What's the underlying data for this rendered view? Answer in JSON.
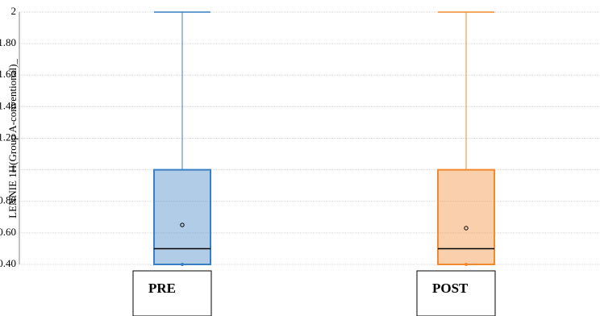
{
  "chart_data": {
    "type": "box",
    "y_label": "LENNIE 1H(Group A-conventional)_",
    "categories": [
      "PRE",
      "POST"
    ],
    "boxes": [
      {
        "min": 0.4,
        "q1": 0.4,
        "median": 0.5,
        "q3": 1,
        "max": 2,
        "mean": 0.65,
        "color": "#3a7fc1"
      },
      {
        "min": 0.4,
        "q1": 0.4,
        "median": 0.5,
        "q3": 1,
        "max": 2,
        "mean": 0.63,
        "color": "#f08a2c"
      }
    ],
    "ylim": [
      0.4,
      2
    ],
    "yticks": [
      {
        "value": 0.4,
        "label": "0.40"
      },
      {
        "value": 0.6,
        "label": "0.60"
      },
      {
        "value": 0.8,
        "label": "0.80"
      },
      1,
      {
        "value": 1.2,
        "label": "1.20"
      },
      {
        "value": 1.4,
        "label": "1.40"
      },
      {
        "value": 1.6,
        "label": "1.60"
      },
      {
        "value": 1.8,
        "label": "1.80"
      },
      2
    ],
    "grid": true
  }
}
